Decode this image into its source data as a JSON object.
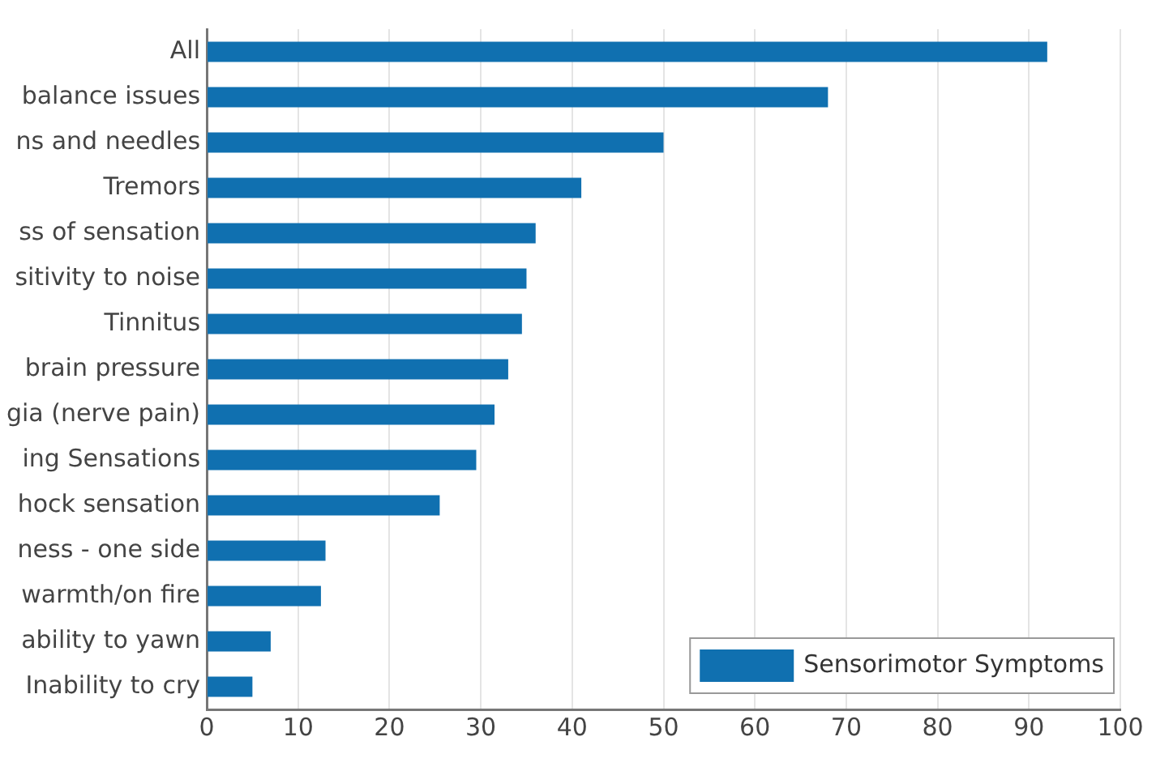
{
  "chart_data": {
    "type": "bar",
    "orientation": "horizontal",
    "categories": [
      "All",
      "balance issues",
      "ns and needles",
      "Tremors",
      "ss of sensation",
      "sitivity to noise",
      "Tinnitus",
      "brain pressure",
      "gia (nerve pain)",
      "ing Sensations",
      "hock sensation",
      "ness - one side",
      "warmth/on fire",
      "ability to yawn",
      "Inability to cry"
    ],
    "series": [
      {
        "name": "Sensorimotor Symptoms",
        "color": "#1070b0",
        "values": [
          92,
          68,
          50,
          41,
          36,
          35,
          34.5,
          33,
          31.5,
          29.5,
          25.5,
          13,
          12.5,
          7,
          5
        ]
      }
    ],
    "xlim": [
      0,
      100
    ],
    "xticks": [
      0,
      10,
      20,
      30,
      40,
      50,
      60,
      70,
      80,
      90,
      100
    ],
    "grid": "x",
    "legend": "bottom right"
  }
}
